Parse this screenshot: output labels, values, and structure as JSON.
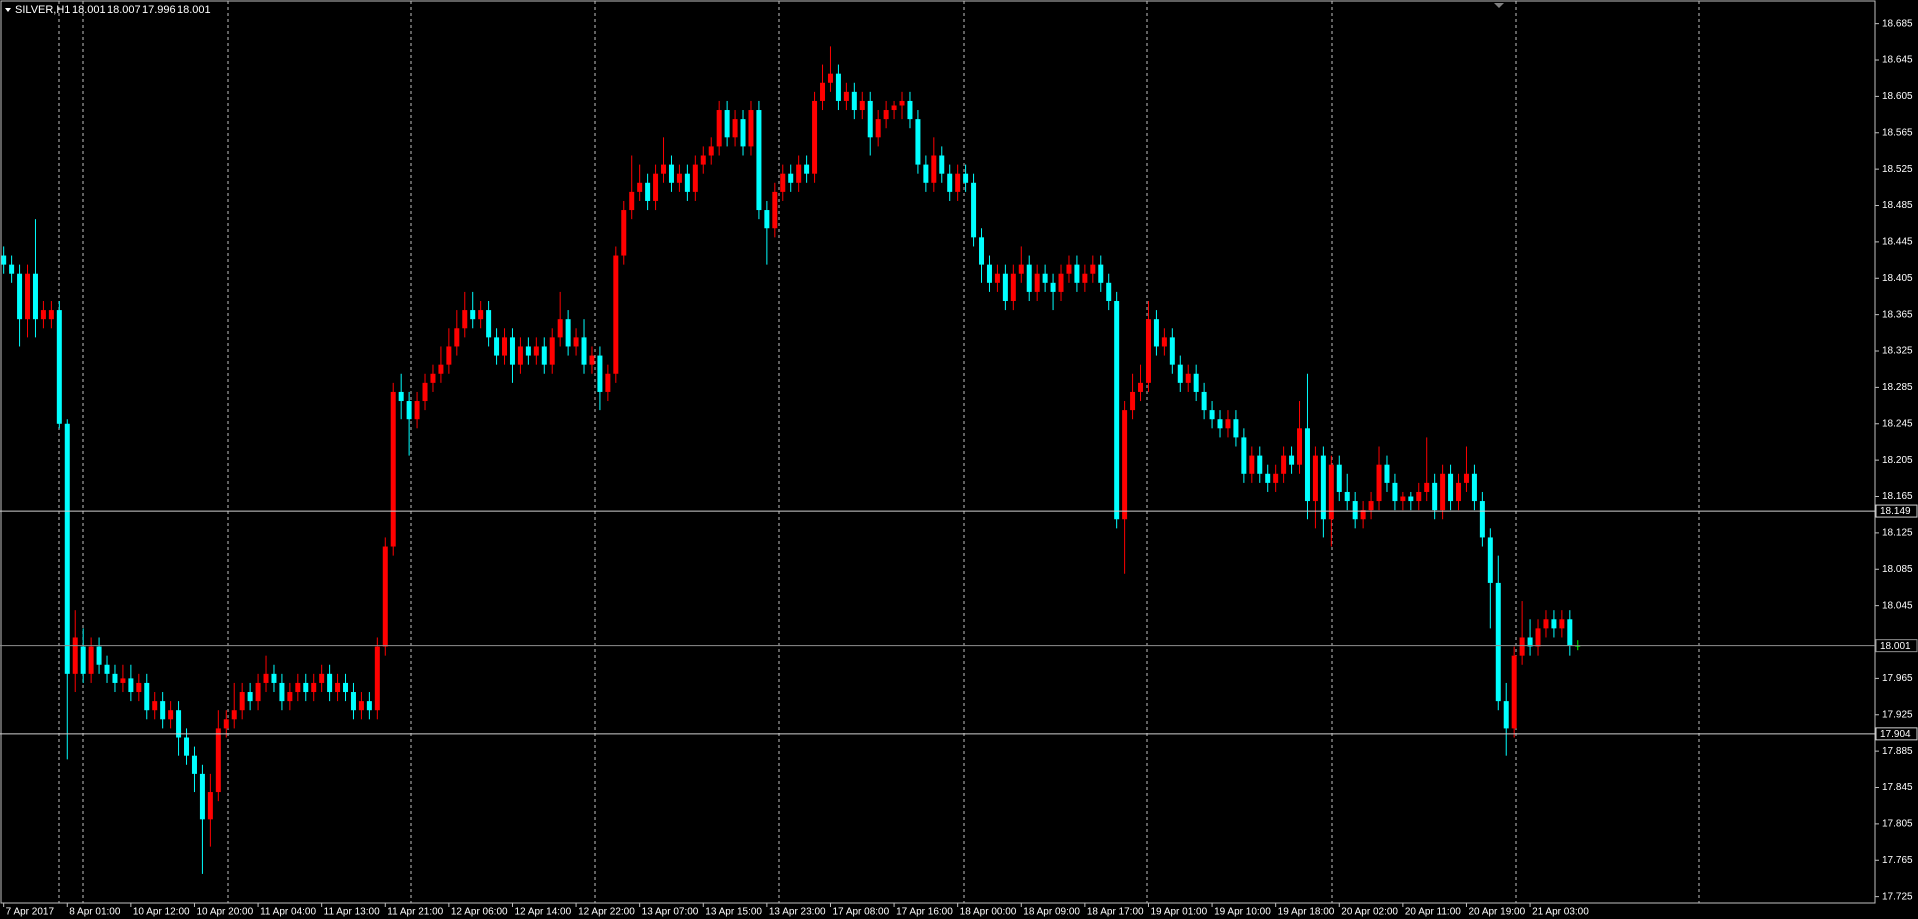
{
  "chart_data": {
    "type": "candlestick",
    "symbol": "SILVER,H1",
    "up_color": "#ff0000",
    "down_color": "#00ffff",
    "doji_color": "#00ff00",
    "ylim": [
      17.718,
      18.711
    ],
    "yticks": [
      18.685,
      18.645,
      18.605,
      18.565,
      18.525,
      18.485,
      18.445,
      18.405,
      18.365,
      18.325,
      18.285,
      18.245,
      18.205,
      18.165,
      18.125,
      18.085,
      18.045,
      17.965,
      17.925,
      17.885,
      17.845,
      17.805,
      17.765,
      17.725
    ],
    "hlines": [
      18.149,
      18.001,
      17.904
    ],
    "hline_colors": [
      "#d0d0d0",
      "#909090",
      "#d0d0d0"
    ],
    "categories": [
      "7 Apr 2017",
      null,
      null,
      null,
      null,
      null,
      null,
      null,
      "8 Apr 01:00",
      null,
      null,
      null,
      null,
      null,
      null,
      null,
      "10 Apr 12:00",
      null,
      null,
      null,
      null,
      null,
      null,
      null,
      "10 Apr 20:00",
      null,
      null,
      null,
      null,
      null,
      null,
      null,
      "11 Apr 04:00",
      null,
      null,
      null,
      null,
      null,
      null,
      null,
      "11 Apr 13:00",
      null,
      null,
      null,
      null,
      null,
      null,
      null,
      "11 Apr 21:00",
      null,
      null,
      null,
      null,
      null,
      null,
      null,
      "12 Apr 06:00",
      null,
      null,
      null,
      null,
      null,
      null,
      null,
      "12 Apr 14:00",
      null,
      null,
      null,
      null,
      null,
      null,
      null,
      "12 Apr 22:00",
      null,
      null,
      null,
      null,
      null,
      null,
      null,
      "13 Apr 07:00",
      null,
      null,
      null,
      null,
      null,
      null,
      null,
      "13 Apr 15:00",
      null,
      null,
      null,
      null,
      null,
      null,
      null,
      "13 Apr 23:00",
      null,
      null,
      null,
      null,
      null,
      null,
      null,
      "17 Apr 08:00",
      null,
      null,
      null,
      null,
      null,
      null,
      null,
      "17 Apr 16:00",
      null,
      null,
      null,
      null,
      null,
      null,
      null,
      "18 Apr 00:00",
      null,
      null,
      null,
      null,
      null,
      null,
      null,
      "18 Apr 09:00",
      null,
      null,
      null,
      null,
      null,
      null,
      null,
      "18 Apr 17:00",
      null,
      null,
      null,
      null,
      null,
      null,
      null,
      "19 Apr 01:00",
      null,
      null,
      null,
      null,
      null,
      null,
      null,
      "19 Apr 10:00",
      null,
      null,
      null,
      null,
      null,
      null,
      null,
      "19 Apr 18:00",
      null,
      null,
      null,
      null,
      null,
      null,
      null,
      "20 Apr 02:00",
      null,
      null,
      null,
      null,
      null,
      null,
      null,
      "20 Apr 11:00",
      null,
      null,
      null,
      null,
      null,
      null,
      null,
      "20 Apr 19:00",
      null,
      null,
      null,
      null,
      null,
      null,
      null,
      "21 Apr 03:00",
      null,
      null,
      null,
      null,
      null,
      null
    ],
    "candles": [
      [
        18.43,
        18.44,
        18.41,
        18.42
      ],
      [
        18.42,
        18.43,
        18.4,
        18.41
      ],
      [
        18.41,
        18.42,
        18.33,
        18.36
      ],
      [
        18.36,
        18.42,
        18.34,
        18.41
      ],
      [
        18.41,
        18.47,
        18.34,
        18.36
      ],
      [
        18.36,
        18.38,
        18.35,
        18.37
      ],
      [
        18.36,
        18.38,
        18.35,
        18.37
      ],
      [
        18.37,
        18.38,
        18.24,
        18.245
      ],
      [
        18.245,
        18.25,
        17.876,
        17.97
      ],
      [
        17.97,
        18.04,
        17.95,
        18.01
      ],
      [
        18.0,
        18.02,
        17.96,
        17.97
      ],
      [
        17.97,
        18.01,
        17.96,
        18.0
      ],
      [
        18.0,
        18.01,
        17.97,
        17.98
      ],
      [
        17.98,
        17.99,
        17.96,
        17.97
      ],
      [
        17.97,
        17.98,
        17.95,
        17.96
      ],
      [
        17.96,
        17.98,
        17.95,
        17.965
      ],
      [
        17.965,
        17.98,
        17.94,
        17.95
      ],
      [
        17.95,
        17.97,
        17.94,
        17.96
      ],
      [
        17.96,
        17.97,
        17.92,
        17.93
      ],
      [
        17.93,
        17.95,
        17.92,
        17.94
      ],
      [
        17.94,
        17.95,
        17.91,
        17.92
      ],
      [
        17.92,
        17.94,
        17.91,
        17.93
      ],
      [
        17.93,
        17.94,
        17.88,
        17.9
      ],
      [
        17.9,
        17.91,
        17.87,
        17.88
      ],
      [
        17.88,
        17.89,
        17.84,
        17.86
      ],
      [
        17.86,
        17.87,
        17.75,
        17.81
      ],
      [
        17.81,
        17.86,
        17.78,
        17.84
      ],
      [
        17.84,
        17.93,
        17.83,
        17.91
      ],
      [
        17.91,
        17.93,
        17.9,
        17.92
      ],
      [
        17.92,
        17.96,
        17.91,
        17.93
      ],
      [
        17.93,
        17.96,
        17.92,
        17.95
      ],
      [
        17.95,
        17.96,
        17.93,
        17.94
      ],
      [
        17.94,
        17.97,
        17.93,
        17.96
      ],
      [
        17.96,
        17.99,
        17.95,
        17.97
      ],
      [
        17.97,
        17.98,
        17.95,
        17.96
      ],
      [
        17.96,
        17.97,
        17.93,
        17.94
      ],
      [
        17.94,
        17.96,
        17.93,
        17.95
      ],
      [
        17.95,
        17.97,
        17.94,
        17.96
      ],
      [
        17.96,
        17.97,
        17.94,
        17.95
      ],
      [
        17.95,
        17.97,
        17.94,
        17.96
      ],
      [
        17.96,
        17.98,
        17.95,
        17.97
      ],
      [
        17.97,
        17.98,
        17.94,
        17.95
      ],
      [
        17.95,
        17.97,
        17.94,
        17.96
      ],
      [
        17.96,
        17.97,
        17.94,
        17.95
      ],
      [
        17.95,
        17.96,
        17.92,
        17.93
      ],
      [
        17.93,
        17.95,
        17.92,
        17.94
      ],
      [
        17.94,
        17.95,
        17.92,
        17.93
      ],
      [
        17.93,
        18.01,
        17.92,
        18.0
      ],
      [
        18.0,
        18.12,
        17.99,
        18.11
      ],
      [
        18.11,
        18.29,
        18.1,
        18.28
      ],
      [
        18.28,
        18.3,
        18.25,
        18.27
      ],
      [
        18.27,
        18.28,
        18.21,
        18.25
      ],
      [
        18.25,
        18.28,
        18.24,
        18.27
      ],
      [
        18.27,
        18.3,
        18.26,
        18.29
      ],
      [
        18.29,
        18.31,
        18.28,
        18.3
      ],
      [
        18.3,
        18.33,
        18.29,
        18.31
      ],
      [
        18.31,
        18.35,
        18.3,
        18.33
      ],
      [
        18.33,
        18.37,
        18.32,
        18.35
      ],
      [
        18.35,
        18.39,
        18.34,
        18.37
      ],
      [
        18.37,
        18.39,
        18.35,
        18.36
      ],
      [
        18.36,
        18.38,
        18.35,
        18.37
      ],
      [
        18.37,
        18.38,
        18.33,
        18.34
      ],
      [
        18.34,
        18.35,
        18.31,
        18.32
      ],
      [
        18.32,
        18.35,
        18.31,
        18.34
      ],
      [
        18.34,
        18.35,
        18.29,
        18.31
      ],
      [
        18.31,
        18.34,
        18.3,
        18.33
      ],
      [
        18.33,
        18.34,
        18.31,
        18.32
      ],
      [
        18.32,
        18.34,
        18.31,
        18.33
      ],
      [
        18.33,
        18.34,
        18.3,
        18.31
      ],
      [
        18.31,
        18.35,
        18.3,
        18.34
      ],
      [
        18.34,
        18.39,
        18.33,
        18.36
      ],
      [
        18.36,
        18.37,
        18.32,
        18.33
      ],
      [
        18.33,
        18.35,
        18.32,
        18.34
      ],
      [
        18.34,
        18.36,
        18.3,
        18.31
      ],
      [
        18.31,
        18.33,
        18.3,
        18.32
      ],
      [
        18.32,
        18.33,
        18.26,
        18.28
      ],
      [
        18.28,
        18.31,
        18.27,
        18.3
      ],
      [
        18.3,
        18.44,
        18.29,
        18.43
      ],
      [
        18.43,
        18.49,
        18.42,
        18.48
      ],
      [
        18.48,
        18.54,
        18.47,
        18.5
      ],
      [
        18.5,
        18.53,
        18.49,
        18.51
      ],
      [
        18.51,
        18.52,
        18.48,
        18.49
      ],
      [
        18.49,
        18.53,
        18.48,
        18.52
      ],
      [
        18.52,
        18.56,
        18.51,
        18.53
      ],
      [
        18.53,
        18.54,
        18.5,
        18.51
      ],
      [
        18.51,
        18.53,
        18.5,
        18.52
      ],
      [
        18.52,
        18.53,
        18.49,
        18.5
      ],
      [
        18.5,
        18.54,
        18.49,
        18.53
      ],
      [
        18.53,
        18.55,
        18.52,
        18.54
      ],
      [
        18.54,
        18.56,
        18.53,
        18.55
      ],
      [
        18.55,
        18.6,
        18.54,
        18.59
      ],
      [
        18.59,
        18.6,
        18.55,
        18.56
      ],
      [
        18.56,
        18.59,
        18.55,
        18.58
      ],
      [
        18.58,
        18.59,
        18.54,
        18.55
      ],
      [
        18.55,
        18.6,
        18.54,
        18.59
      ],
      [
        18.59,
        18.6,
        18.47,
        18.48
      ],
      [
        18.48,
        18.49,
        18.42,
        18.46
      ],
      [
        18.46,
        18.51,
        18.45,
        18.5
      ],
      [
        18.5,
        18.53,
        18.49,
        18.52
      ],
      [
        18.52,
        18.53,
        18.5,
        18.51
      ],
      [
        18.51,
        18.54,
        18.5,
        18.53
      ],
      [
        18.53,
        18.54,
        18.51,
        18.52
      ],
      [
        18.52,
        18.61,
        18.51,
        18.6
      ],
      [
        18.6,
        18.64,
        18.59,
        18.62
      ],
      [
        18.62,
        18.66,
        18.61,
        18.63
      ],
      [
        18.63,
        18.64,
        18.59,
        18.6
      ],
      [
        18.6,
        18.62,
        18.59,
        18.61
      ],
      [
        18.61,
        18.62,
        18.58,
        18.59
      ],
      [
        18.59,
        18.61,
        18.58,
        18.6
      ],
      [
        18.6,
        18.61,
        18.54,
        18.56
      ],
      [
        18.56,
        18.59,
        18.55,
        18.58
      ],
      [
        18.58,
        18.6,
        18.57,
        18.59
      ],
      [
        18.59,
        18.6,
        18.58,
        18.595
      ],
      [
        18.595,
        18.61,
        18.58,
        18.6
      ],
      [
        18.6,
        18.61,
        18.57,
        18.58
      ],
      [
        18.58,
        18.59,
        18.52,
        18.53
      ],
      [
        18.53,
        18.54,
        18.5,
        18.51
      ],
      [
        18.51,
        18.56,
        18.5,
        18.54
      ],
      [
        18.54,
        18.55,
        18.51,
        18.52
      ],
      [
        18.52,
        18.53,
        18.49,
        18.5
      ],
      [
        18.5,
        18.53,
        18.49,
        18.52
      ],
      [
        18.52,
        18.53,
        18.5,
        18.51
      ],
      [
        18.51,
        18.52,
        18.44,
        18.45
      ],
      [
        18.45,
        18.46,
        18.4,
        18.42
      ],
      [
        18.42,
        18.43,
        18.39,
        18.4
      ],
      [
        18.4,
        18.42,
        18.39,
        18.41
      ],
      [
        18.41,
        18.42,
        18.37,
        18.38
      ],
      [
        18.38,
        18.42,
        18.37,
        18.41
      ],
      [
        18.41,
        18.44,
        18.4,
        18.42
      ],
      [
        18.42,
        18.43,
        18.38,
        18.39
      ],
      [
        18.39,
        18.42,
        18.38,
        18.41
      ],
      [
        18.41,
        18.42,
        18.39,
        18.4
      ],
      [
        18.4,
        18.41,
        18.37,
        18.39
      ],
      [
        18.39,
        18.42,
        18.38,
        18.41
      ],
      [
        18.41,
        18.43,
        18.4,
        18.42
      ],
      [
        18.42,
        18.43,
        18.39,
        18.4
      ],
      [
        18.4,
        18.42,
        18.39,
        18.41
      ],
      [
        18.41,
        18.43,
        18.4,
        18.42
      ],
      [
        18.42,
        18.43,
        18.39,
        18.4
      ],
      [
        18.4,
        18.41,
        18.37,
        18.38
      ],
      [
        18.38,
        18.39,
        18.13,
        18.14
      ],
      [
        18.14,
        18.27,
        18.08,
        18.26
      ],
      [
        18.26,
        18.3,
        18.25,
        18.28
      ],
      [
        18.28,
        18.31,
        18.27,
        18.29
      ],
      [
        18.29,
        18.38,
        18.28,
        18.36
      ],
      [
        18.36,
        18.37,
        18.32,
        18.33
      ],
      [
        18.33,
        18.35,
        18.32,
        18.34
      ],
      [
        18.34,
        18.35,
        18.3,
        18.31
      ],
      [
        18.31,
        18.32,
        18.28,
        18.29
      ],
      [
        18.29,
        18.31,
        18.28,
        18.3
      ],
      [
        18.3,
        18.31,
        18.27,
        18.28
      ],
      [
        18.28,
        18.29,
        18.25,
        18.26
      ],
      [
        18.26,
        18.27,
        18.24,
        18.25
      ],
      [
        18.25,
        18.26,
        18.23,
        18.24
      ],
      [
        18.24,
        18.26,
        18.23,
        18.25
      ],
      [
        18.25,
        18.26,
        18.22,
        18.23
      ],
      [
        18.23,
        18.24,
        18.18,
        18.19
      ],
      [
        18.19,
        18.22,
        18.18,
        18.21
      ],
      [
        18.21,
        18.22,
        18.18,
        18.19
      ],
      [
        18.19,
        18.2,
        18.17,
        18.18
      ],
      [
        18.18,
        18.2,
        18.17,
        18.19
      ],
      [
        18.19,
        18.22,
        18.18,
        18.21
      ],
      [
        18.21,
        18.22,
        18.19,
        18.2
      ],
      [
        18.2,
        18.27,
        18.19,
        18.24
      ],
      [
        18.24,
        18.3,
        18.14,
        18.16
      ],
      [
        18.16,
        18.22,
        18.13,
        18.21
      ],
      [
        18.21,
        18.22,
        18.12,
        18.14
      ],
      [
        18.14,
        18.21,
        18.11,
        18.2
      ],
      [
        18.2,
        18.21,
        18.16,
        18.17
      ],
      [
        18.17,
        18.19,
        18.15,
        18.16
      ],
      [
        18.16,
        18.17,
        18.13,
        18.14
      ],
      [
        18.14,
        18.16,
        18.13,
        18.15
      ],
      [
        18.15,
        18.17,
        18.14,
        18.16
      ],
      [
        18.16,
        18.22,
        18.15,
        18.2
      ],
      [
        18.2,
        18.21,
        18.17,
        18.18
      ],
      [
        18.18,
        18.19,
        18.15,
        18.16
      ],
      [
        18.16,
        18.17,
        18.15,
        18.165
      ],
      [
        18.165,
        18.17,
        18.15,
        18.16
      ],
      [
        18.16,
        18.18,
        18.15,
        18.17
      ],
      [
        18.17,
        18.23,
        18.16,
        18.18
      ],
      [
        18.18,
        18.19,
        18.14,
        18.15
      ],
      [
        18.15,
        18.2,
        18.14,
        18.19
      ],
      [
        18.19,
        18.2,
        18.15,
        18.16
      ],
      [
        18.16,
        18.19,
        18.15,
        18.18
      ],
      [
        18.18,
        18.22,
        18.17,
        18.19
      ],
      [
        18.19,
        18.2,
        18.15,
        18.16
      ],
      [
        18.16,
        18.17,
        18.11,
        18.12
      ],
      [
        18.12,
        18.13,
        18.02,
        18.07
      ],
      [
        18.07,
        18.1,
        17.93,
        17.94
      ],
      [
        17.94,
        17.96,
        17.88,
        17.91
      ],
      [
        17.91,
        18.0,
        17.9,
        17.99
      ],
      [
        17.99,
        18.05,
        17.98,
        18.01
      ],
      [
        18.01,
        18.03,
        17.99,
        18.0
      ],
      [
        18.0,
        18.03,
        17.99,
        18.02
      ],
      [
        18.02,
        18.04,
        18.01,
        18.03
      ],
      [
        18.03,
        18.04,
        18.01,
        18.02
      ],
      [
        18.02,
        18.04,
        18.01,
        18.03
      ],
      [
        18.03,
        18.04,
        17.99,
        18.001
      ],
      [
        18.001,
        18.007,
        17.996,
        18.001
      ]
    ]
  }
}
